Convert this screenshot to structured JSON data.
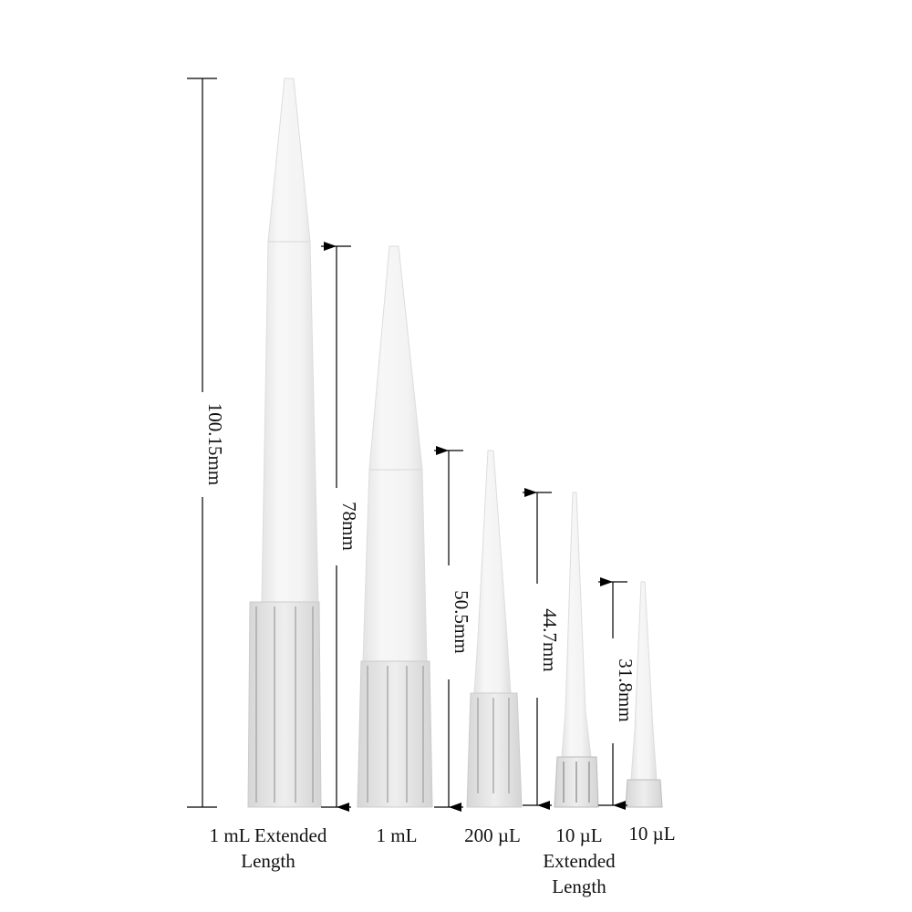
{
  "dimensions": [
    {
      "label": "100.15mm"
    },
    {
      "label": "78mm"
    },
    {
      "label": "50.5mm"
    },
    {
      "label": "44.7mm"
    },
    {
      "label": "31.8mm"
    }
  ],
  "tips": [
    {
      "line1": "1 mL Extended",
      "line2": "Length"
    },
    {
      "line1": "1 mL"
    },
    {
      "line1": "200 µL"
    },
    {
      "line1": "10 µL",
      "line2": "Extended",
      "line3": "Length"
    },
    {
      "line1": "10 µL"
    }
  ],
  "colors": {
    "tip": "#f1f1f1",
    "collar": "#e6e6e6",
    "line": "#000000"
  }
}
